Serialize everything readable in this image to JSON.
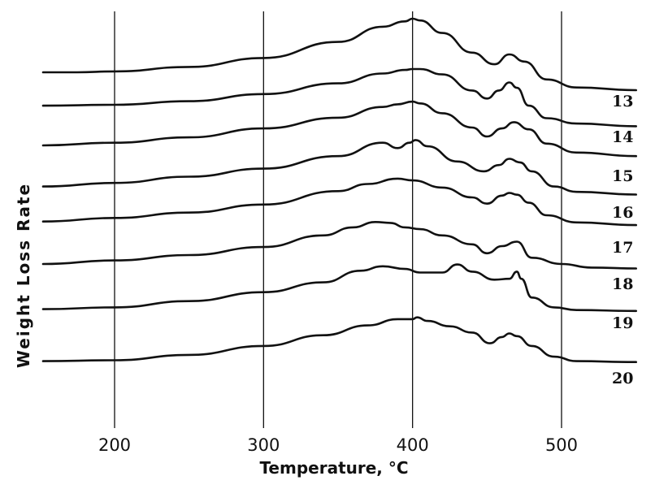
{
  "chart_data": {
    "type": "line",
    "title": "",
    "xlabel": "Temperature, °C",
    "ylabel": "Weight Loss Rate",
    "xlim": [
      150,
      550
    ],
    "xticks": [
      200,
      300,
      400,
      500
    ],
    "grid": "vertical gridlines at x ticks",
    "series": [
      {
        "name": "13",
        "x": [
          152,
          175,
          200,
          250,
          300,
          350,
          380,
          395,
          400,
          405,
          420,
          440,
          455,
          465,
          475,
          490,
          510,
          550
        ],
        "y": [
          3.0,
          3.0,
          3.1,
          3.6,
          4.6,
          6.4,
          8.1,
          8.7,
          9.0,
          8.8,
          7.4,
          5.2,
          3.9,
          5.0,
          4.2,
          2.2,
          1.3,
          1.0
        ]
      },
      {
        "name": "14",
        "x": [
          152,
          200,
          250,
          300,
          350,
          380,
          395,
          400,
          405,
          420,
          440,
          450,
          458,
          465,
          470,
          478,
          490,
          510,
          550
        ],
        "y": [
          2.9,
          3.0,
          3.4,
          4.2,
          5.4,
          6.5,
          6.9,
          7.0,
          7.0,
          6.4,
          4.6,
          3.7,
          4.6,
          5.5,
          4.9,
          2.9,
          1.5,
          0.9,
          0.6
        ]
      },
      {
        "name": "15",
        "x": [
          152,
          200,
          250,
          300,
          350,
          380,
          390,
          400,
          405,
          420,
          440,
          450,
          460,
          468,
          478,
          490,
          510,
          550
        ],
        "y": [
          3.0,
          3.3,
          3.9,
          4.9,
          6.1,
          7.3,
          7.6,
          7.9,
          7.7,
          6.6,
          5.0,
          4.0,
          4.9,
          5.6,
          4.8,
          3.2,
          2.2,
          1.8
        ]
      },
      {
        "name": "16",
        "x": [
          152,
          200,
          250,
          300,
          350,
          380,
          390,
          398,
          402,
          410,
          430,
          448,
          458,
          465,
          472,
          480,
          495,
          510,
          550
        ],
        "y": [
          2.4,
          2.8,
          3.5,
          4.4,
          5.8,
          7.3,
          6.7,
          7.3,
          7.6,
          6.9,
          5.2,
          4.1,
          4.8,
          5.5,
          5.1,
          4.1,
          2.4,
          1.8,
          1.5
        ]
      },
      {
        "name": "17",
        "x": [
          152,
          200,
          250,
          300,
          350,
          370,
          390,
          400,
          420,
          440,
          450,
          460,
          465,
          470,
          478,
          490,
          510,
          550
        ],
        "y": [
          2.3,
          2.7,
          3.3,
          4.2,
          5.7,
          6.5,
          7.1,
          6.9,
          6.1,
          5.0,
          4.3,
          5.2,
          5.5,
          5.3,
          4.4,
          3.0,
          2.2,
          1.9
        ]
      },
      {
        "name": "18",
        "x": [
          152,
          200,
          250,
          300,
          340,
          360,
          375,
          385,
          395,
          405,
          420,
          440,
          450,
          460,
          470,
          480,
          500,
          520,
          550
        ],
        "y": [
          2.0,
          2.4,
          3.0,
          3.9,
          5.2,
          6.1,
          6.7,
          6.6,
          6.1,
          5.9,
          5.2,
          4.2,
          3.2,
          4.0,
          4.5,
          2.7,
          2.0,
          1.6,
          1.5
        ]
      },
      {
        "name": "19",
        "x": [
          152,
          200,
          250,
          300,
          340,
          365,
          380,
          395,
          405,
          420,
          430,
          440,
          455,
          465,
          470,
          473,
          480,
          495,
          510,
          550
        ],
        "y": [
          1.4,
          1.6,
          2.3,
          3.3,
          4.4,
          5.7,
          6.2,
          5.9,
          5.5,
          5.5,
          6.4,
          5.6,
          4.7,
          4.8,
          5.6,
          4.8,
          2.7,
          1.6,
          1.3,
          1.2
        ]
      },
      {
        "name": "20",
        "x": [
          152,
          200,
          250,
          300,
          340,
          370,
          390,
          400,
          403,
          410,
          425,
          440,
          452,
          460,
          465,
          470,
          480,
          495,
          510,
          550
        ],
        "y": [
          1.4,
          1.5,
          2.1,
          3.1,
          4.3,
          5.4,
          6.1,
          6.1,
          6.3,
          5.9,
          5.3,
          4.6,
          3.4,
          4.1,
          4.5,
          4.2,
          3.1,
          1.9,
          1.4,
          1.3
        ]
      }
    ]
  }
}
